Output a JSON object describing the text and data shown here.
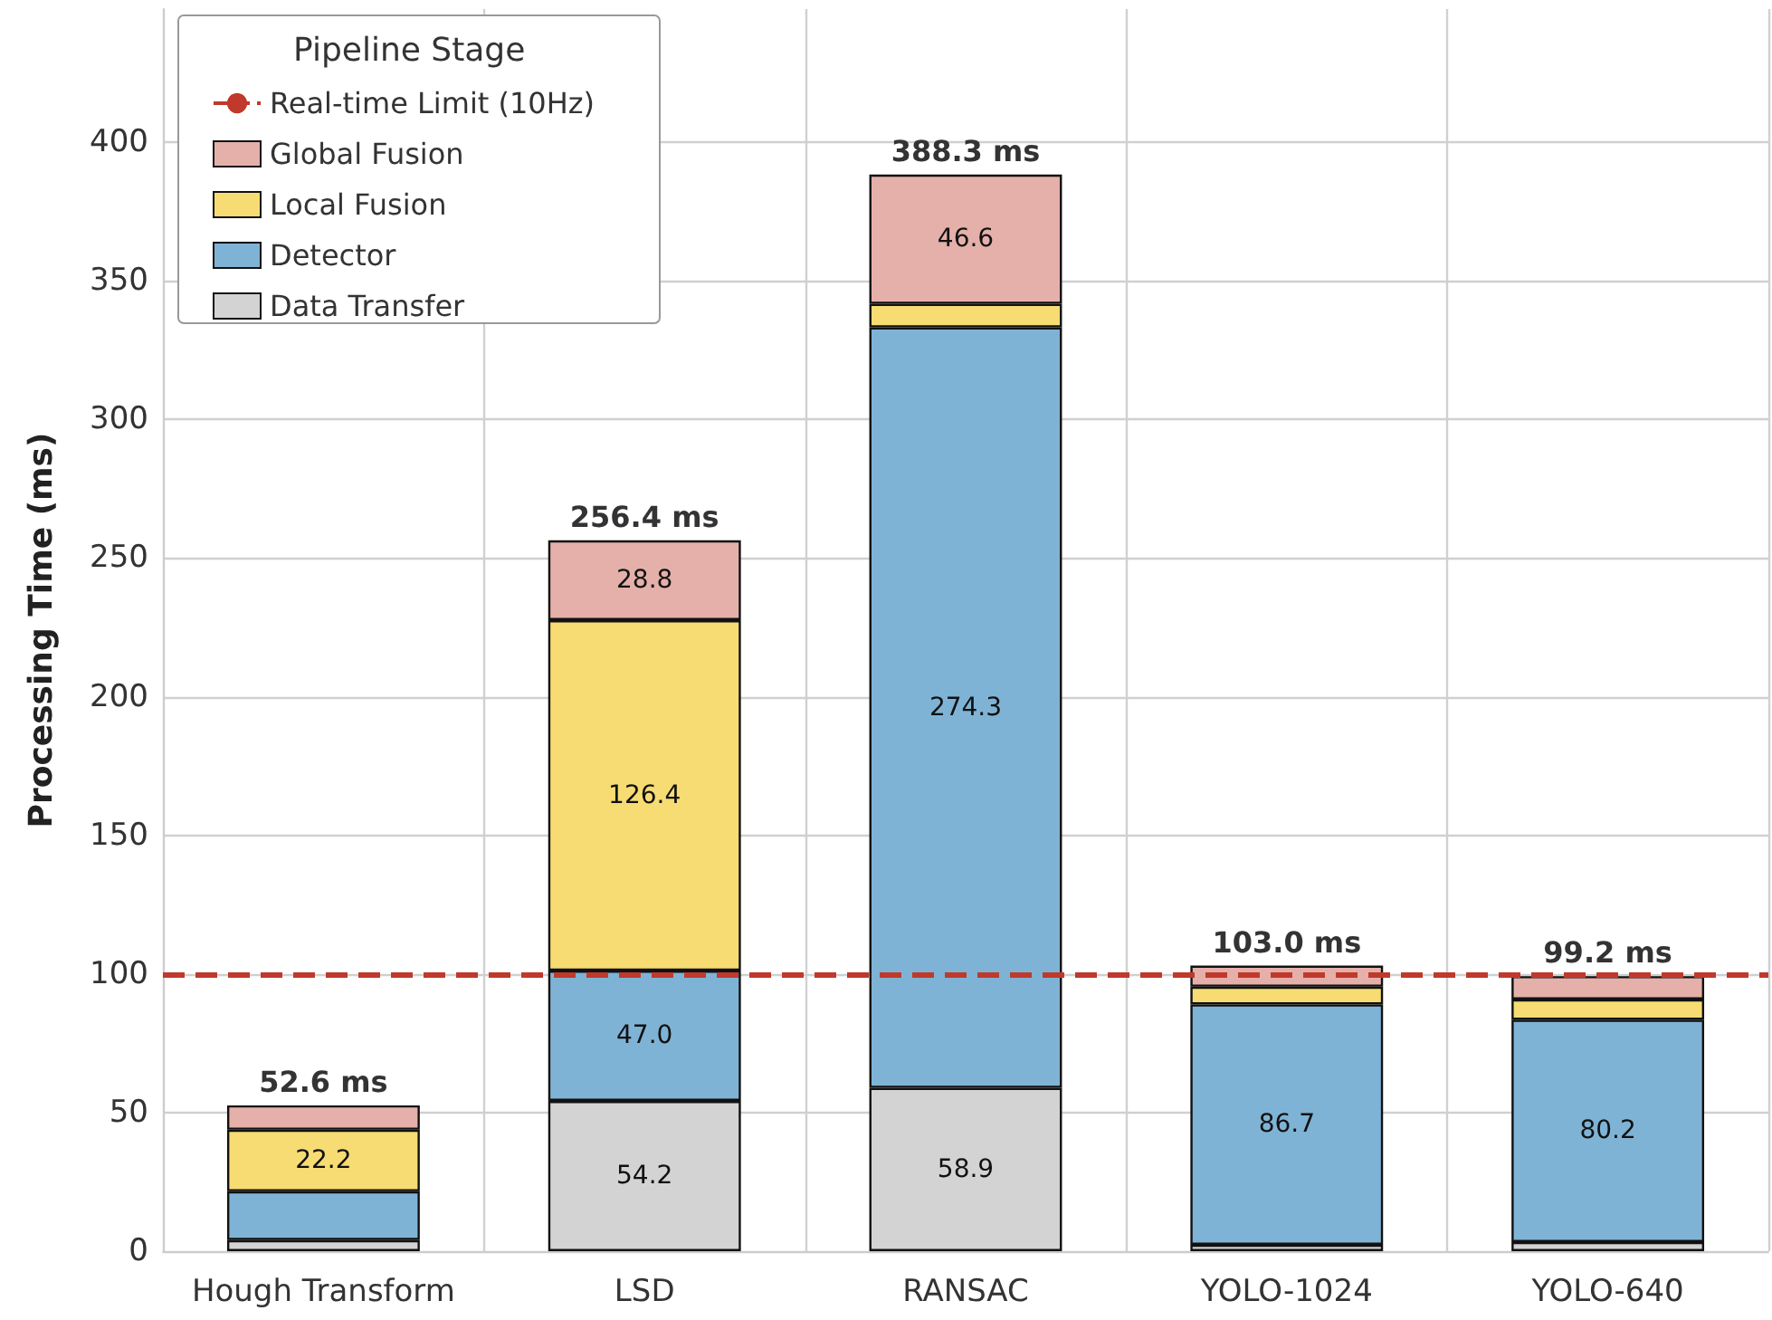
{
  "chart_data": {
    "type": "bar",
    "stacked": true,
    "ylabel": "Processing Time (ms)",
    "legend_title": "Pipeline Stage",
    "legend": "top left",
    "grid": true,
    "categories": [
      "Hough Transform",
      "LSD",
      "RANSAC",
      "YOLO-1024",
      "YOLO-640"
    ],
    "series": [
      {
        "name": "Data Transfer",
        "color": "#d3d3d3",
        "values": [
          4.0,
          54.2,
          58.9,
          2.3,
          3.3
        ],
        "value_labels": [
          null,
          "54.2",
          "58.9",
          null,
          null
        ]
      },
      {
        "name": "Detector",
        "color": "#7fb3d5",
        "values": [
          17.6,
          47.0,
          274.3,
          86.7,
          80.2
        ],
        "value_labels": [
          null,
          "47.0",
          "274.3",
          "86.7",
          "80.2"
        ]
      },
      {
        "name": "Local Fusion",
        "color": "#f6dc72",
        "values": [
          22.2,
          126.4,
          8.5,
          6.4,
          7.3
        ],
        "value_labels": [
          "22.2",
          "126.4",
          null,
          null,
          null
        ]
      },
      {
        "name": "Global Fusion",
        "color": "#e5b0aa",
        "values": [
          8.8,
          28.8,
          46.6,
          7.6,
          8.4
        ],
        "value_labels": [
          null,
          "28.8",
          "46.6",
          null,
          null
        ]
      }
    ],
    "totals": [
      "52.6 ms",
      "256.4 ms",
      "388.3 ms",
      "103.0 ms",
      "99.2 ms"
    ],
    "ref_lines": [
      {
        "axis": "y",
        "value": 100,
        "label": "Real-time Limit (10Hz)",
        "color": "#c0392b",
        "line_style": "dashed"
      }
    ],
    "ylim": [
      0,
      448
    ],
    "yticks": [
      0,
      50,
      100,
      150,
      200,
      250,
      300,
      350,
      400
    ]
  }
}
